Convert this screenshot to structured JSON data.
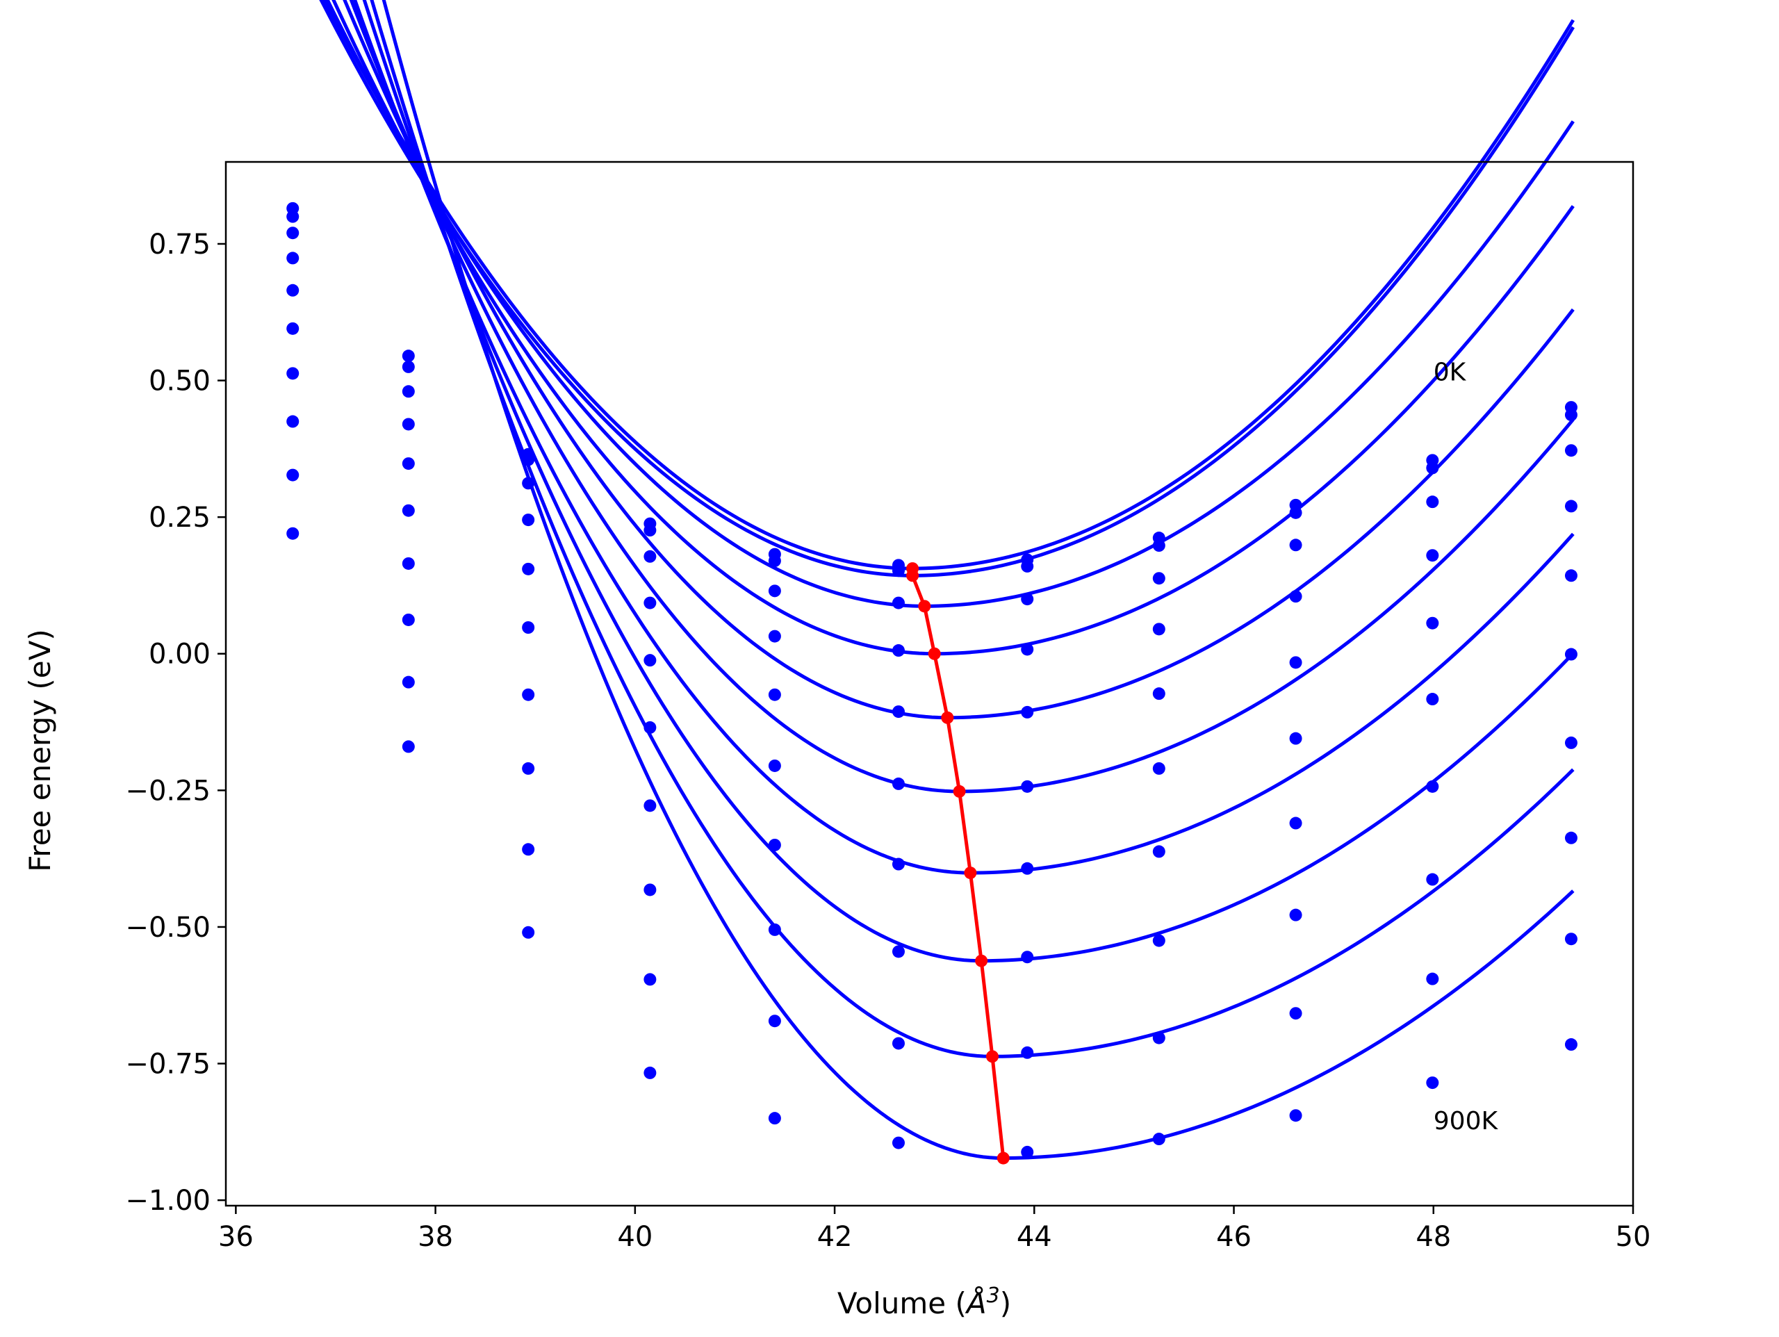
{
  "chart_data": {
    "type": "line",
    "xlabel": "Volume (Å³)",
    "xlabel_main": "Volume (",
    "xlabel_unit": "Å",
    "xlabel_exp": "3",
    "xlabel_close": ")",
    "ylabel": "Free energy (eV)",
    "xlim": [
      35.9,
      50.0
    ],
    "ylim": [
      -1.01,
      0.9
    ],
    "x_ticks": [
      36,
      38,
      40,
      42,
      44,
      46,
      48,
      50
    ],
    "x_tick_labels": [
      "36",
      "38",
      "40",
      "42",
      "44",
      "46",
      "48",
      "50"
    ],
    "y_ticks": [
      -1.0,
      -0.75,
      -0.5,
      -0.25,
      0.0,
      0.25,
      0.5,
      0.75
    ],
    "y_tick_labels": [
      "−1.00",
      "−0.75",
      "−0.50",
      "−0.25",
      "0.00",
      "0.25",
      "0.50",
      "0.75"
    ],
    "grid": false,
    "curve_color": "#0000ff",
    "min_color": "#ff0000",
    "annotations": [
      {
        "text": "0K",
        "x": 48.0,
        "y": 0.5
      },
      {
        "text": "900K",
        "x": 48.0,
        "y": -0.87
      }
    ],
    "volumes": [
      36.57,
      37.73,
      38.93,
      40.15,
      41.4,
      42.64,
      43.93,
      45.25,
      46.62,
      47.99,
      49.38
    ],
    "series": [
      {
        "points": [
          0.815,
          0.545,
          0.365,
          0.238,
          0.182,
          0.162,
          0.172,
          0.212,
          0.272,
          0.354,
          0.451
        ],
        "fit": {
          "min_v": 42.78,
          "min_e": 0.156,
          "lc": 0.03,
          "rc": 0.0229
        }
      },
      {
        "points": [
          0.8,
          0.525,
          0.355,
          0.226,
          0.17,
          0.152,
          0.16,
          0.198,
          0.258,
          0.34,
          0.437
        ],
        "fit": {
          "min_v": 42.78,
          "min_e": 0.143,
          "lc": 0.03,
          "rc": 0.0229
        }
      },
      {
        "points": [
          0.77,
          0.48,
          0.312,
          0.178,
          0.115,
          0.093,
          0.1,
          0.138,
          0.199,
          0.278,
          0.372
        ],
        "fit": {
          "min_v": 42.9,
          "min_e": 0.087,
          "lc": 0.031,
          "rc": 0.021
        }
      },
      {
        "points": [
          0.724,
          0.42,
          0.245,
          0.093,
          0.032,
          0.006,
          0.008,
          0.045,
          0.105,
          0.18,
          0.27
        ],
        "fit": {
          "min_v": 43.0,
          "min_e": 0.0,
          "lc": 0.033,
          "rc": 0.02
        }
      },
      {
        "points": [
          0.665,
          0.348,
          0.155,
          -0.012,
          -0.075,
          -0.106,
          -0.107,
          -0.073,
          -0.016,
          0.056,
          0.143
        ],
        "fit": {
          "min_v": 43.13,
          "min_e": -0.117,
          "lc": 0.036,
          "rc": 0.019
        }
      },
      {
        "points": [
          0.595,
          0.262,
          0.048,
          -0.135,
          -0.205,
          -0.238,
          -0.243,
          -0.21,
          -0.155,
          -0.083,
          -0.001
        ],
        "fit": {
          "min_v": 43.25,
          "min_e": -0.252,
          "lc": 0.039,
          "rc": 0.018
        }
      },
      {
        "points": [
          0.513,
          0.165,
          -0.075,
          -0.278,
          -0.35,
          -0.385,
          -0.393,
          -0.362,
          -0.31,
          -0.243,
          -0.163
        ],
        "fit": {
          "min_v": 43.36,
          "min_e": -0.401,
          "lc": 0.042,
          "rc": 0.017
        }
      },
      {
        "points": [
          0.425,
          0.062,
          -0.21,
          -0.432,
          -0.505,
          -0.545,
          -0.555,
          -0.525,
          -0.478,
          -0.413,
          -0.337
        ],
        "fit": {
          "min_v": 43.47,
          "min_e": -0.562,
          "lc": 0.046,
          "rc": 0.016
        }
      },
      {
        "points": [
          0.327,
          -0.052,
          -0.358,
          -0.596,
          -0.672,
          -0.713,
          -0.73,
          -0.703,
          -0.658,
          -0.595,
          -0.522
        ],
        "fit": {
          "min_v": 43.58,
          "min_e": -0.737,
          "lc": 0.05,
          "rc": 0.0155
        }
      },
      {
        "points": [
          0.22,
          -0.17,
          -0.51,
          -0.767,
          -0.85,
          -0.895,
          -0.912,
          -0.888,
          -0.845,
          -0.785,
          -0.715
        ],
        "fit": {
          "min_v": 43.69,
          "min_e": -0.923,
          "lc": 0.055,
          "rc": 0.015
        }
      }
    ],
    "minimum_line": {
      "volume": [
        42.78,
        42.78,
        42.9,
        43.0,
        43.13,
        43.25,
        43.36,
        43.47,
        43.58,
        43.69
      ],
      "energy": [
        0.156,
        0.143,
        0.087,
        0.0,
        -0.117,
        -0.252,
        -0.401,
        -0.562,
        -0.737,
        -0.923
      ]
    }
  }
}
